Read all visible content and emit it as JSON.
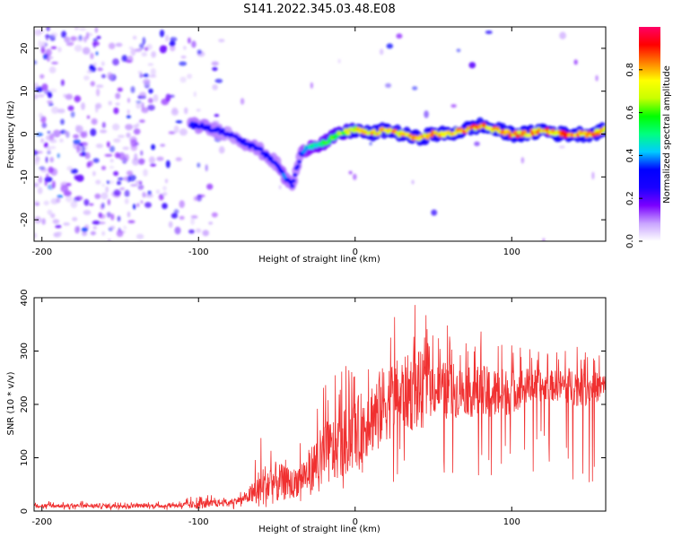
{
  "chart_data": [
    {
      "type": "heatmap",
      "title": "S141.2022.345.03.48.E08",
      "xlabel": "Height of straight line (km)",
      "ylabel": "Frequency (Hz)",
      "xlim": [
        -205,
        160
      ],
      "ylim": [
        -25,
        25
      ],
      "x_ticks": [
        -200,
        -100,
        0,
        100
      ],
      "y_ticks": [
        -20,
        -10,
        0,
        10,
        20
      ],
      "colorbar": {
        "label": "Normalized spectral amplitude",
        "range": [
          0,
          1
        ],
        "ticks": [
          "0.0",
          "0.2",
          "0.4",
          "0.6",
          "0.8"
        ],
        "colors": [
          "#ffffff",
          "#c9a4ff",
          "#7a00ff",
          "#1a00ff",
          "#0000ff",
          "#00ccff",
          "#00ff80",
          "#00ff00",
          "#c8ff00",
          "#ffff00",
          "#ff8000",
          "#ff0000",
          "#ff0066"
        ]
      },
      "ridge": {
        "description_x": [
          -100,
          -90,
          -80,
          -70,
          -60,
          -50,
          -45,
          -40,
          -35,
          -30,
          -20,
          -10,
          0,
          10,
          20,
          30,
          40,
          50,
          60,
          70,
          80,
          90,
          100,
          110,
          120,
          130,
          140,
          150,
          160
        ],
        "frequency": [
          2,
          1,
          0,
          -2,
          -4,
          -7,
          -10,
          -12,
          -5,
          -3,
          -2,
          0,
          1,
          0,
          1,
          0,
          -1,
          0,
          0,
          1,
          2,
          1,
          0,
          0,
          1,
          0,
          0,
          0,
          1
        ],
        "amplitude": [
          0.3,
          0.3,
          0.25,
          0.3,
          0.3,
          0.3,
          0.35,
          0.3,
          0.3,
          0.45,
          0.55,
          0.6,
          0.7,
          0.75,
          0.75,
          0.75,
          0.75,
          0.75,
          0.75,
          0.8,
          0.8,
          0.8,
          0.8,
          0.8,
          0.8,
          0.8,
          0.8,
          0.8,
          0.8
        ]
      }
    },
    {
      "type": "line",
      "title": "",
      "xlabel": "Height of straight line (km)",
      "ylabel": "SNR (10 * v/v)",
      "xlim": [
        -205,
        160
      ],
      "ylim": [
        0,
        400
      ],
      "x_ticks": [
        -200,
        -100,
        0,
        100
      ],
      "y_ticks": [
        0,
        100,
        200,
        300,
        400
      ],
      "color": "#f03030",
      "series": [
        {
          "x": [
            -205,
            -180,
            -160,
            -140,
            -120,
            -100,
            -90,
            -80,
            -70,
            -60,
            -50,
            -40,
            -30,
            -20,
            -10,
            0,
            10,
            20,
            30,
            40,
            50,
            60,
            70,
            80,
            90,
            100,
            110,
            120,
            130,
            140,
            150,
            160
          ],
          "baseline": [
            10,
            10,
            10,
            10,
            10,
            12,
            14,
            17,
            24,
            45,
            55,
            50,
            75,
            105,
            120,
            145,
            175,
            205,
            220,
            225,
            230,
            225,
            225,
            220,
            220,
            225,
            235,
            235,
            235,
            235,
            230,
            235
          ],
          "peak": [
            18,
            18,
            20,
            18,
            18,
            30,
            30,
            30,
            40,
            140,
            140,
            110,
            160,
            240,
            260,
            290,
            330,
            370,
            370,
            400,
            340,
            350,
            320,
            340,
            330,
            320,
            310,
            300,
            300,
            320,
            300,
            290
          ]
        }
      ]
    }
  ]
}
